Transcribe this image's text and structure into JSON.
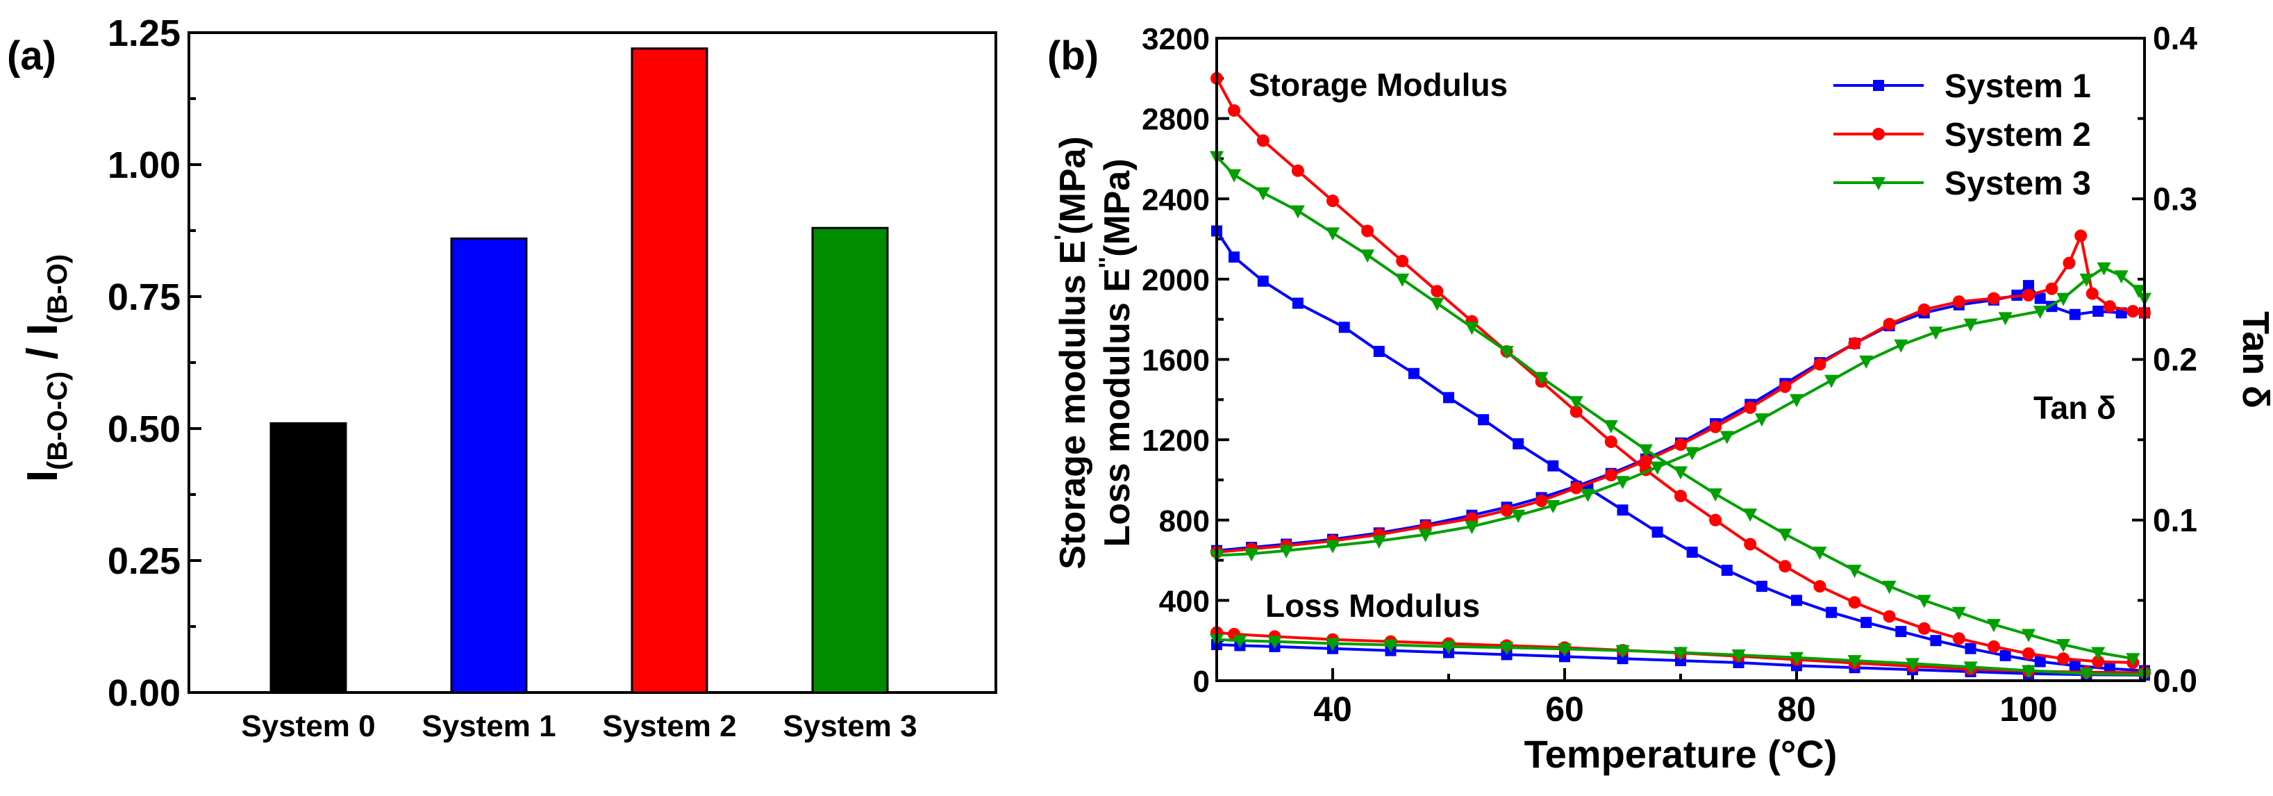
{
  "chart_data": [
    {
      "panel_label": "(a)",
      "type": "bar",
      "categories": [
        "System 0",
        "System 1",
        "System 2",
        "System 3"
      ],
      "values": [
        0.51,
        0.86,
        1.22,
        0.88
      ],
      "colors": [
        "#000000",
        "#0000ff",
        "#ff0000",
        "#008c00"
      ],
      "ylabel": {
        "main": "I",
        "sub1": "(B-O-C)",
        "sep": " / I",
        "sub2": "(B-O)"
      },
      "ylim": [
        0,
        1.25
      ],
      "yticks": [
        "0.00",
        "0.25",
        "0.50",
        "0.75",
        "1.00",
        "1.25"
      ]
    },
    {
      "panel_label": "(b)",
      "type": "line",
      "xlabel": "Temperature (°C)",
      "ylabel_left_1": "Storage modulus E",
      "ylabel_left_1_suffix": "(MPa)",
      "ylabel_left_2": "Loss modulus E",
      "ylabel_left_2_suffix": "(MPa)",
      "ylabel_left_prime1": "'",
      "ylabel_left_prime2": "''",
      "ylabel_right": "Tan δ",
      "xlim": [
        30,
        110
      ],
      "ylim_left": [
        0,
        3200
      ],
      "ylim_right": [
        0,
        0.4
      ],
      "xticks": [
        "40",
        "60",
        "80",
        "100"
      ],
      "yticks_left": [
        "0",
        "400",
        "800",
        "1200",
        "1600",
        "2000",
        "2400",
        "2800",
        "3200"
      ],
      "yticks_right": [
        "0.0",
        "0.1",
        "0.2",
        "0.3",
        "0.4"
      ],
      "annotations": {
        "storage": "Storage Modulus",
        "loss": "Loss Modulus",
        "tan": "Tan δ"
      },
      "series": [
        {
          "name": "System 1",
          "color": "#0000ff",
          "marker": "square",
          "storage": {
            "x": [
              30,
              31.5,
              34,
              37,
              41,
              44,
              47,
              50,
              53,
              56,
              59,
              62,
              65,
              68,
              71,
              74,
              77,
              80,
              83,
              86,
              89,
              92,
              95,
              98,
              101,
              104,
              107,
              110
            ],
            "y": [
              2240,
              2110,
              1990,
              1880,
              1760,
              1640,
              1530,
              1410,
              1300,
              1180,
              1070,
              960,
              850,
              740,
              640,
              550,
              470,
              400,
              340,
              290,
              245,
              200,
              160,
              125,
              95,
              75,
              60,
              50
            ]
          },
          "loss": {
            "x": [
              30,
              32,
              35,
              40,
              45,
              50,
              55,
              60,
              65,
              70,
              75,
              80,
              85,
              90,
              95,
              100,
              105,
              110
            ],
            "y": [
              180,
              175,
              170,
              160,
              150,
              140,
              130,
              120,
              110,
              100,
              90,
              75,
              65,
              55,
              45,
              35,
              30,
              28
            ]
          },
          "tan": {
            "x": [
              30,
              33,
              36,
              40,
              44,
              48,
              52,
              55,
              58,
              61,
              64,
              67,
              70,
              73,
              76,
              79,
              82,
              85,
              88,
              91,
              94,
              97,
              99,
              100,
              101,
              102,
              104,
              106,
              108,
              110
            ],
            "y": [
              0.081,
              0.083,
              0.085,
              0.088,
              0.092,
              0.097,
              0.103,
              0.108,
              0.114,
              0.121,
              0.129,
              0.138,
              0.148,
              0.16,
              0.172,
              0.185,
              0.198,
              0.21,
              0.221,
              0.229,
              0.234,
              0.237,
              0.24,
              0.246,
              0.238,
              0.233,
              0.228,
              0.23,
              0.229,
              0.229
            ]
          }
        },
        {
          "name": "System 2",
          "color": "#ff0000",
          "marker": "circle",
          "storage": {
            "x": [
              30,
              31.5,
              34,
              37,
              40,
              43,
              46,
              49,
              52,
              55,
              58,
              61,
              64,
              67,
              70,
              73,
              76,
              79,
              82,
              85,
              88,
              91,
              94,
              97,
              100,
              103,
              106,
              109
            ],
            "y": [
              3000,
              2840,
              2690,
              2540,
              2390,
              2240,
              2090,
              1940,
              1790,
              1640,
              1490,
              1340,
              1190,
              1050,
              920,
              800,
              680,
              570,
              470,
              390,
              320,
              260,
              210,
              170,
              135,
              110,
              95,
              90
            ]
          },
          "loss": {
            "x": [
              30,
              31.5,
              35,
              40,
              45,
              50,
              55,
              60,
              65,
              70,
              75,
              80,
              85,
              90,
              95,
              100,
              105,
              110
            ],
            "y": [
              240,
              232,
              220,
              205,
              195,
              185,
              175,
              165,
              152,
              138,
              122,
              105,
              88,
              72,
              58,
              48,
              42,
              40
            ]
          },
          "tan": {
            "x": [
              30,
              33,
              36,
              40,
              44,
              48,
              52,
              55,
              58,
              61,
              64,
              67,
              70,
              73,
              76,
              79,
              82,
              85,
              88,
              91,
              94,
              97,
              100,
              102,
              103.5,
              104.5,
              105.5,
              107,
              109,
              110
            ],
            "y": [
              0.08,
              0.082,
              0.084,
              0.087,
              0.091,
              0.096,
              0.101,
              0.106,
              0.112,
              0.12,
              0.128,
              0.137,
              0.147,
              0.158,
              0.17,
              0.183,
              0.197,
              0.21,
              0.222,
              0.231,
              0.236,
              0.238,
              0.24,
              0.244,
              0.26,
              0.277,
              0.241,
              0.233,
              0.23,
              0.229
            ]
          }
        },
        {
          "name": "System 3",
          "color": "#00a000",
          "marker": "triangle",
          "storage": {
            "x": [
              30,
              31.5,
              34,
              37,
              40,
              43,
              46,
              49,
              52,
              55,
              58,
              61,
              64,
              67,
              70,
              73,
              76,
              79,
              82,
              85,
              88,
              91,
              94,
              97,
              100,
              103,
              106,
              109
            ],
            "y": [
              2610,
              2520,
              2430,
              2340,
              2230,
              2120,
              2000,
              1880,
              1760,
              1640,
              1510,
              1390,
              1270,
              1150,
              1040,
              930,
              830,
              730,
              640,
              550,
              470,
              400,
              340,
              280,
              230,
              180,
              140,
              110
            ]
          },
          "loss": {
            "x": [
              30,
              32,
              35,
              40,
              45,
              50,
              55,
              60,
              65,
              70,
              75,
              80,
              85,
              90,
              95,
              100,
              105,
              110
            ],
            "y": [
              205,
              200,
              195,
              185,
              178,
              170,
              165,
              158,
              150,
              140,
              128,
              115,
              100,
              85,
              68,
              50,
              35,
              30
            ]
          },
          "tan": {
            "x": [
              30,
              33,
              36,
              40,
              44,
              48,
              52,
              56,
              59,
              62,
              65,
              68,
              71,
              74,
              77,
              80,
              83,
              86,
              89,
              92,
              95,
              98,
              101,
              103,
              105,
              106.5,
              108,
              109.5,
              110
            ],
            "y": [
              0.078,
              0.079,
              0.081,
              0.084,
              0.087,
              0.091,
              0.096,
              0.103,
              0.109,
              0.116,
              0.124,
              0.133,
              0.142,
              0.152,
              0.163,
              0.175,
              0.187,
              0.199,
              0.209,
              0.217,
              0.222,
              0.226,
              0.23,
              0.238,
              0.25,
              0.257,
              0.252,
              0.243,
              0.238
            ]
          }
        }
      ]
    }
  ]
}
